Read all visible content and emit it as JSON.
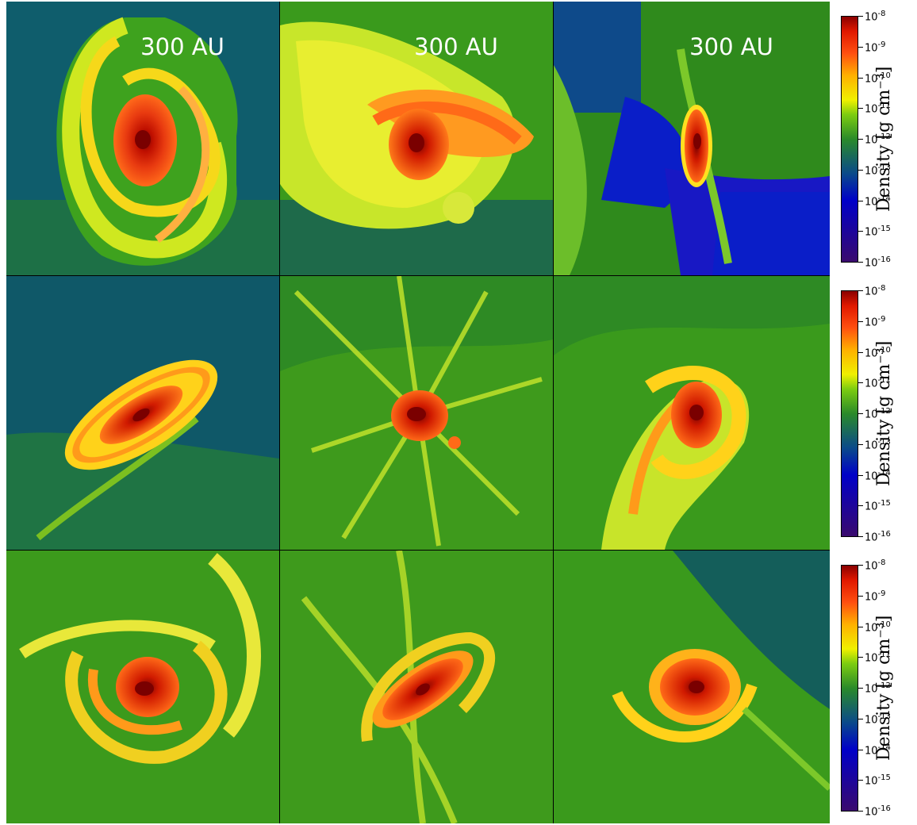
{
  "figure": {
    "scale_label": "300 AU",
    "colorbar": {
      "title": "Density [g cm⁻³]",
      "tick_labels": [
        "10-8",
        "10-9",
        "10-10",
        "10-11",
        "10-12",
        "10-13",
        "10-14",
        "10-15",
        "10-16"
      ],
      "tick_exponents": [
        "-8",
        "-9",
        "-10",
        "-11",
        "-12",
        "-13",
        "-14",
        "-15",
        "-16"
      ],
      "colors": [
        "#3a0a6e",
        "#0000c8",
        "#0a4a8a",
        "#2a8a2a",
        "#7ccc10",
        "#f0f000",
        "#ffb000",
        "#ff5010",
        "#e01800",
        "#8a0000"
      ]
    },
    "background_colors": {
      "green": "#3c9a1c",
      "teal": "#0e5a6a",
      "blue": "#0a1ec8"
    },
    "disk_colors": {
      "core": "#8a0000",
      "inner": "#e6300c",
      "mid": "#ff7a10",
      "outer": "#f0e81a",
      "halo": "#b8e020"
    }
  }
}
